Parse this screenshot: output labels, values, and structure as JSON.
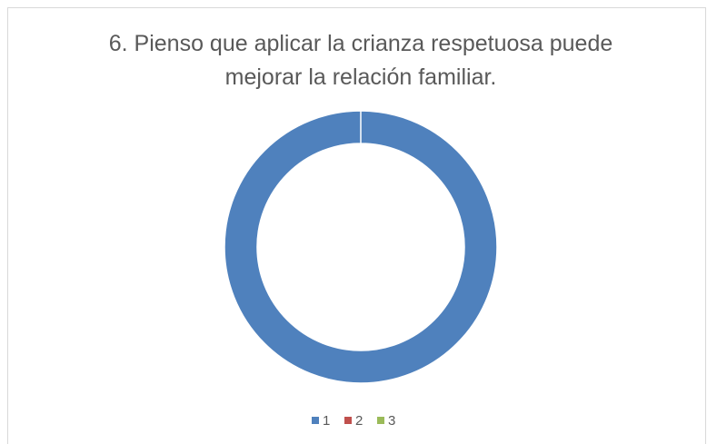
{
  "chart_data": {
    "type": "donut",
    "title": "6. Pienso que aplicar la crianza respetuosa puede mejorar la relación familiar.",
    "categories": [
      "1",
      "2",
      "3"
    ],
    "values": [
      100,
      0,
      0
    ],
    "colors": [
      "#4f81bd",
      "#c0504d",
      "#9bbb59"
    ],
    "legend": "bottom"
  }
}
